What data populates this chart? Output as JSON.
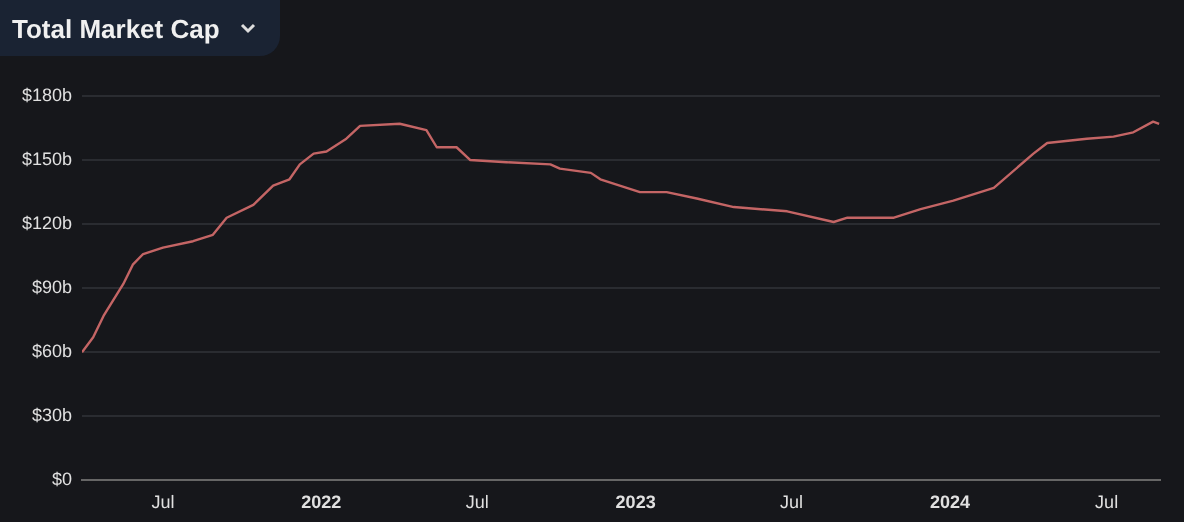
{
  "chart_data": {
    "type": "line",
    "title": "Total Market Cap",
    "x": [
      "2021-03-29",
      "2021-04-11",
      "2021-04-23",
      "2021-05-16",
      "2021-05-27",
      "2021-06-08",
      "2021-07-01",
      "2021-08-05",
      "2021-08-28",
      "2021-09-13",
      "2021-10-14",
      "2021-11-06",
      "2021-11-25",
      "2021-12-07",
      "2021-12-23",
      "2022-01-07",
      "2022-01-30",
      "2022-02-15",
      "2022-04-02",
      "2022-05-03",
      "2022-05-15",
      "2022-06-07",
      "2022-06-23",
      "2022-08-04",
      "2022-09-24",
      "2022-10-05",
      "2022-11-10",
      "2022-11-21",
      "2023-01-06",
      "2023-02-06",
      "2023-03-13",
      "2023-04-25",
      "2023-06-26",
      "2023-08-19",
      "2023-09-04",
      "2023-10-28",
      "2023-11-28",
      "2024-01-05",
      "2024-02-21",
      "2024-04-07",
      "2024-04-23",
      "2024-06-08",
      "2024-07-09",
      "2024-08-01",
      "2024-08-24",
      "2024-08-31"
    ],
    "series": [
      {
        "color": "#c46565",
        "values": [
          60,
          67,
          77,
          92,
          101,
          106,
          109,
          112,
          115,
          123,
          129,
          138,
          141,
          148,
          153,
          154,
          160,
          166,
          167,
          164,
          156,
          156,
          150,
          149,
          148,
          146,
          144,
          141,
          135,
          135,
          132,
          128,
          126,
          121,
          123,
          123,
          127,
          131,
          137,
          153,
          158,
          160,
          161,
          163,
          168,
          167
        ]
      }
    ],
    "xlim": [
      "2021-03-29",
      "2024-09-01"
    ],
    "xticks": [
      {
        "value": "2021-07-01",
        "label": "Jul"
      },
      {
        "value": "2022-01-01",
        "label": "2022"
      },
      {
        "value": "2022-07-01",
        "label": "Jul"
      },
      {
        "value": "2023-01-01",
        "label": "2023"
      },
      {
        "value": "2023-07-01",
        "label": "Jul"
      },
      {
        "value": "2024-01-01",
        "label": "2024"
      },
      {
        "value": "2024-07-01",
        "label": "Jul"
      }
    ],
    "ylim": [
      0,
      180
    ],
    "yticks": [
      {
        "value": 0,
        "label": "$0"
      },
      {
        "value": 30,
        "label": "$30b"
      },
      {
        "value": 60,
        "label": "$60b"
      },
      {
        "value": 90,
        "label": "$90b"
      },
      {
        "value": 120,
        "label": "$120b"
      },
      {
        "value": 150,
        "label": "$150b"
      },
      {
        "value": 180,
        "label": "$180b"
      }
    ],
    "grid": "y",
    "legend": false,
    "marker": "none",
    "line_style": "solid"
  }
}
